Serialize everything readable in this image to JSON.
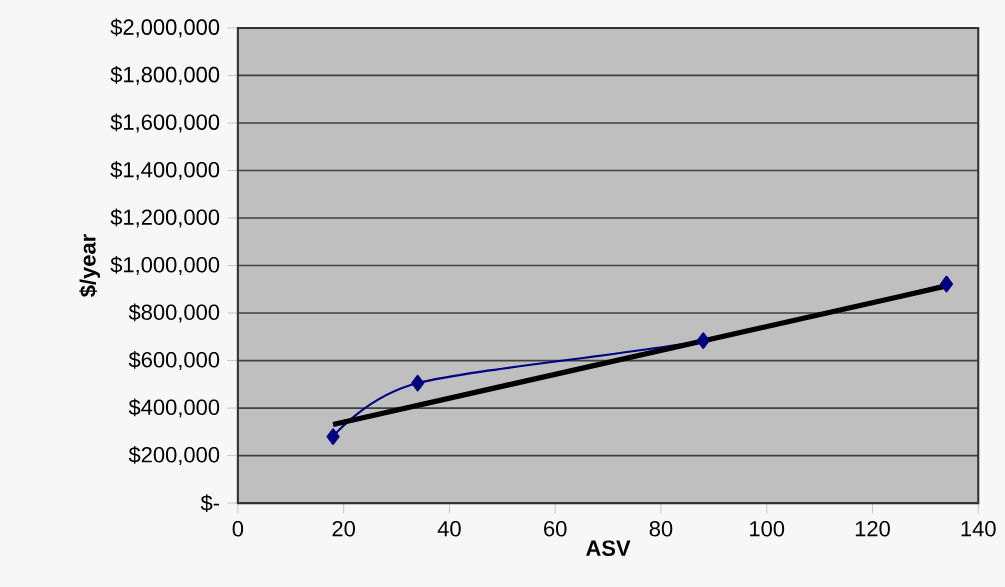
{
  "chart_data": {
    "type": "line",
    "xlabel": "ASV",
    "ylabel": "$/year",
    "series": [
      {
        "color": "#000080",
        "x": [
          18,
          34,
          88,
          134
        ],
        "values": [
          280000,
          505000,
          684000,
          922000
        ],
        "marker": "diamond"
      },
      {
        "color": "#000000",
        "x": [
          18,
          134
        ],
        "values": [
          331000,
          914000
        ],
        "marker": "none"
      }
    ],
    "xlim": [
      0,
      140
    ],
    "xticks": [
      0,
      20,
      40,
      60,
      80,
      100,
      120,
      140
    ],
    "ylim": [
      0,
      2000000
    ],
    "yticks": [
      {
        "value": 0,
        "label": "$-"
      },
      {
        "value": 200000,
        "label": "$200,000"
      },
      {
        "value": 400000,
        "label": "$400,000"
      },
      {
        "value": 600000,
        "label": "$600,000"
      },
      {
        "value": 800000,
        "label": "$800,000"
      },
      {
        "value": 1000000,
        "label": "$1,000,000"
      },
      {
        "value": 1200000,
        "label": "$1,200,000"
      },
      {
        "value": 1400000,
        "label": "$1,400,000"
      },
      {
        "value": 1600000,
        "label": "$1,600,000"
      },
      {
        "value": 1800000,
        "label": "$1,800,000"
      },
      {
        "value": 2000000,
        "label": "$2,000,000"
      }
    ],
    "grid": "y"
  }
}
